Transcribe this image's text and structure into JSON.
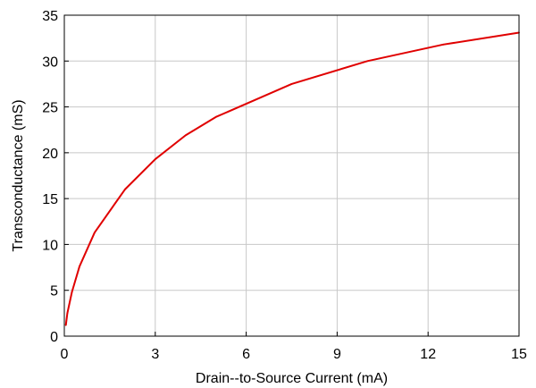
{
  "chart_data": {
    "type": "line",
    "title": "",
    "xlabel": "Drain--to-Source Current (mA)",
    "ylabel": "Transconductance (mS)",
    "xlim": [
      0,
      15
    ],
    "ylim": [
      0,
      35
    ],
    "xticks": [
      0,
      3,
      6,
      9,
      12,
      15
    ],
    "yticks": [
      0,
      5,
      10,
      15,
      20,
      25,
      30,
      35
    ],
    "xtick_labels": [
      "0",
      "3",
      "6",
      "9",
      "12",
      "15"
    ],
    "ytick_labels": [
      "0",
      "5",
      "10",
      "15",
      "20",
      "25",
      "30",
      "35"
    ],
    "grid": true,
    "legend": "none",
    "colors": {
      "line": "#e00000",
      "grid": "#c8c8c8",
      "frame": "#000000"
    },
    "series": [
      {
        "x": [
          0.05,
          0.1,
          0.25,
          0.5,
          1.0,
          2.0,
          3.0,
          4.0,
          5.0,
          7.5,
          10.0,
          12.5,
          15.0
        ],
        "y": [
          1.2,
          2.5,
          4.8,
          7.6,
          11.3,
          16.0,
          19.3,
          21.9,
          23.9,
          27.5,
          30.0,
          31.8,
          33.1
        ]
      }
    ]
  }
}
